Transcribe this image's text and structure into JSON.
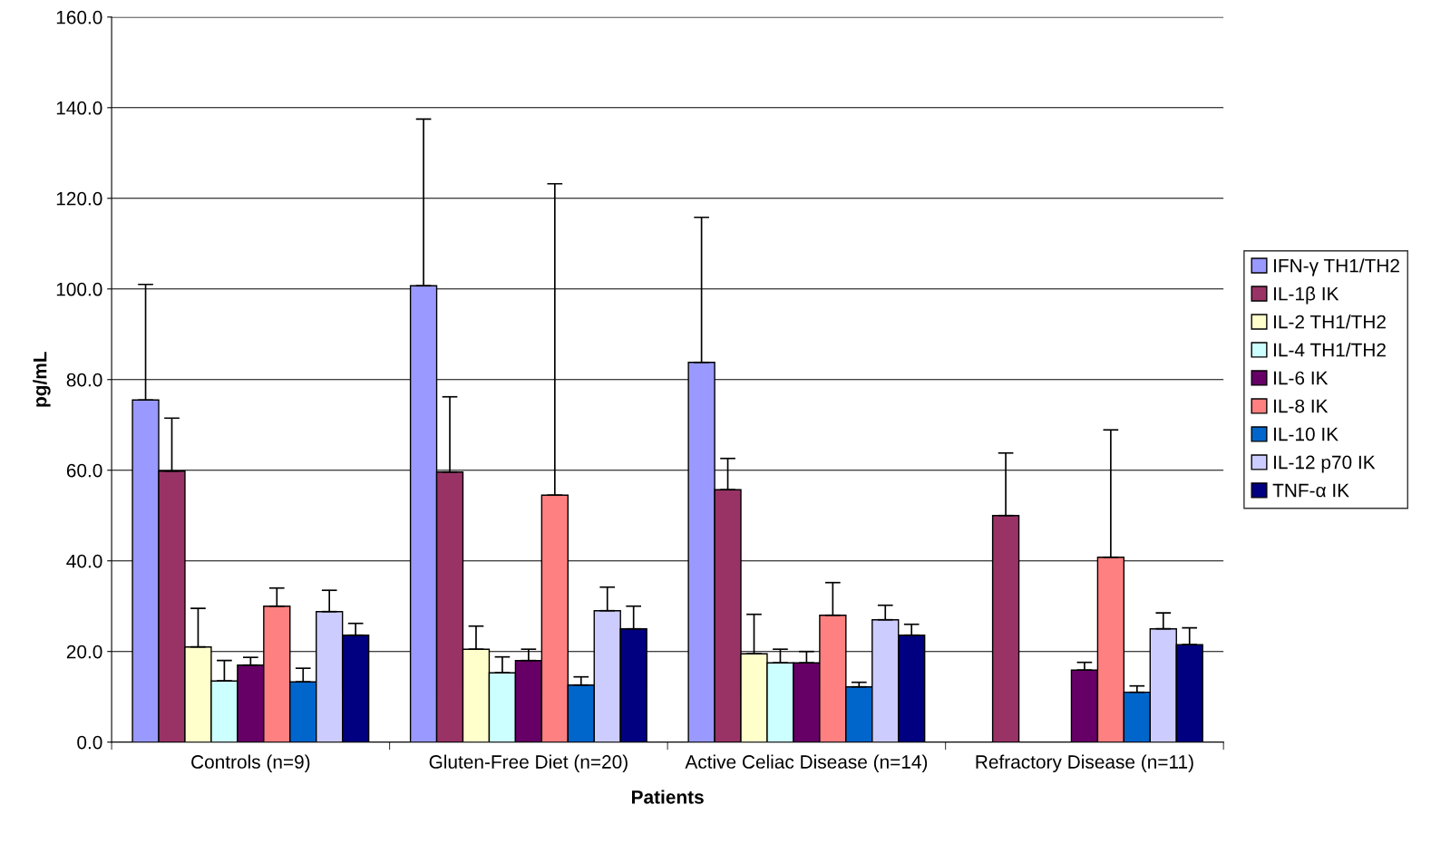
{
  "chart_data": {
    "type": "bar",
    "xlabel": "Patients",
    "ylabel": "pg/mL",
    "categories": [
      "Controls (n=9)",
      "Gluten-Free Diet (n=20)",
      "Active Celiac Disease (n=14)",
      "Refractory Disease (n=11)"
    ],
    "series": [
      {
        "name": "IFN-γ TH1/TH2",
        "color": "#9999ff",
        "values": [
          75.5,
          100.7,
          83.8,
          null
        ],
        "errors": [
          [
            75.5,
            101
          ],
          [
            100.7,
            137.5
          ],
          [
            83.8,
            115.8
          ],
          null
        ]
      },
      {
        "name": "IL-1β IK",
        "color": "#993366",
        "values": [
          59.8,
          59.6,
          55.7,
          50
        ],
        "errors": [
          [
            59.8,
            71.5
          ],
          [
            59.6,
            76.2
          ],
          [
            55.7,
            62.6
          ],
          [
            50,
            63.8
          ]
        ]
      },
      {
        "name": "IL-2 TH1/TH2",
        "color": "#ffffcc",
        "values": [
          21,
          20.5,
          19.5,
          null
        ],
        "errors": [
          [
            21,
            29.5
          ],
          [
            20.5,
            25.6
          ],
          [
            19.5,
            28.2
          ],
          null
        ]
      },
      {
        "name": "IL-4 TH1/TH2",
        "color": "#ccffff",
        "values": [
          13.5,
          15.3,
          17.5,
          null
        ],
        "errors": [
          [
            13.5,
            18
          ],
          [
            15.3,
            18.8
          ],
          [
            17.5,
            20.5
          ],
          null
        ]
      },
      {
        "name": "IL-6 IK",
        "color": "#660066",
        "values": [
          17,
          18,
          17.5,
          15.9
        ],
        "errors": [
          [
            17,
            18.7
          ],
          [
            18,
            20.5
          ],
          [
            17.5,
            20
          ],
          [
            15.9,
            17.6
          ]
        ]
      },
      {
        "name": "IL-8 IK",
        "color": "#ff8080",
        "values": [
          30,
          54.5,
          28,
          40.8
        ],
        "errors": [
          [
            30,
            34
          ],
          [
            54.5,
            123.2
          ],
          [
            28,
            35.2
          ],
          [
            40.8,
            68.9
          ]
        ]
      },
      {
        "name": "IL-10 IK",
        "color": "#0066cc",
        "values": [
          13.3,
          12.6,
          12.2,
          11
        ],
        "errors": [
          [
            13.3,
            16.3
          ],
          [
            12.6,
            14.4
          ],
          [
            12.2,
            13.2
          ],
          [
            11,
            12.4
          ]
        ]
      },
      {
        "name": "IL-12 p70 IK",
        "color": "#ccccff",
        "values": [
          28.8,
          29,
          27,
          25
        ],
        "errors": [
          [
            28.8,
            33.5
          ],
          [
            29,
            34.2
          ],
          [
            27,
            30.2
          ],
          [
            25,
            28.5
          ]
        ]
      },
      {
        "name": "TNF-α IK",
        "color": "#000080",
        "values": [
          23.6,
          25,
          23.6,
          21.5
        ],
        "errors": [
          [
            23.6,
            26.2
          ],
          [
            25,
            30
          ],
          [
            23.6,
            26
          ],
          [
            21.5,
            25.2
          ]
        ]
      }
    ],
    "ylim": [
      0,
      160
    ],
    "yticks": [
      {
        "value": 0,
        "label": "0.0"
      },
      {
        "value": 20,
        "label": "20.0"
      },
      {
        "value": 40,
        "label": "40.0"
      },
      {
        "value": 60,
        "label": "60.0"
      },
      {
        "value": 80,
        "label": "80.0"
      },
      {
        "value": 100,
        "label": "100.0"
      },
      {
        "value": 120,
        "label": "120.0"
      },
      {
        "value": 140,
        "label": "140.0"
      },
      {
        "value": 160,
        "label": "160.0"
      }
    ],
    "grid": "y",
    "legend": "right"
  }
}
